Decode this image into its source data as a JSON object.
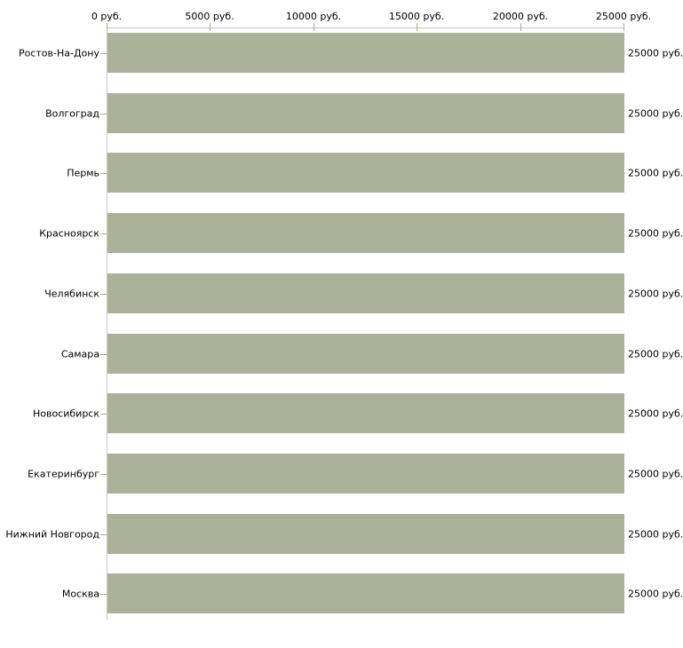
{
  "chart_data": {
    "type": "bar",
    "orientation": "horizontal",
    "categories": [
      "Ростов-На-Дону",
      "Волгоград",
      "Пермь",
      "Красноярск",
      "Челябинск",
      "Самара",
      "Новосибирск",
      "Екатеринбург",
      "Нижний Новгород",
      "Москва"
    ],
    "values": [
      25000,
      25000,
      25000,
      25000,
      25000,
      25000,
      25000,
      25000,
      25000,
      25000
    ],
    "value_labels": [
      "25000 руб.",
      "25000 руб.",
      "25000 руб.",
      "25000 руб.",
      "25000 руб.",
      "25000 руб.",
      "25000 руб.",
      "25000 руб.",
      "25000 руб.",
      "25000 руб."
    ],
    "x_tick_values": [
      0,
      5000,
      10000,
      15000,
      20000,
      25000
    ],
    "x_tick_labels": [
      "0 руб.",
      "5000 руб.",
      "10000 руб.",
      "15000 руб.",
      "20000 руб.",
      "25000 руб."
    ],
    "xlim": [
      0,
      25000
    ],
    "xlabel": "",
    "ylabel": "",
    "title": "",
    "grid": false,
    "legend": "none",
    "colors": {
      "bar": "#acb199",
      "axis_line": "#c6c6c6",
      "tick": "#b2ab7c",
      "text": "#000000",
      "background": "#ffffff"
    }
  }
}
